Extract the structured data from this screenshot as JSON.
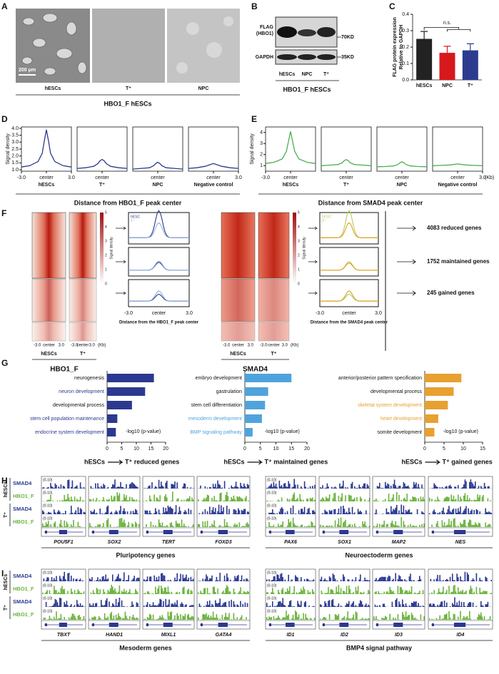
{
  "panels": {
    "letters": [
      "A",
      "B",
      "C",
      "D",
      "E",
      "F",
      "G",
      "H",
      "I"
    ],
    "a": {
      "scale_bar": "200 μm",
      "labels": [
        "hESCs",
        "T⁺",
        "NPC"
      ],
      "caption": "HBO1_F hESCs"
    },
    "b": {
      "rows": [
        "FLAG",
        "(HBO1)",
        "GAPDH"
      ],
      "sizes": [
        "70KD",
        "35KD"
      ],
      "lanes": [
        "hESCs",
        "NPC",
        "T⁺"
      ],
      "caption": "HBO1_F hESCs"
    },
    "d": {
      "caption": "Distance from HBO1_F peak center"
    },
    "e": {
      "caption": "Distance from SMAD4 peak center"
    },
    "f": {
      "sides": [
        {
          "name": "HBO1_F",
          "columns": [
            "hESCs",
            "T⁺"
          ],
          "axis": [
            "-3.0",
            "center",
            "3.0"
          ],
          "kb": "(Kb)",
          "colorbar": [
            "0",
            "1",
            "2",
            "3",
            "4",
            "5"
          ],
          "colorbar_label": "Signal density",
          "legend": [
            "hESC",
            "T⁺"
          ],
          "profile_axis": [
            "-3.0",
            "center",
            "3.0"
          ],
          "caption": "Distance from the HBO1_F peak center"
        },
        {
          "name": "SMAD4",
          "columns": [
            "hESCs",
            "T⁺"
          ],
          "axis": [
            "-3.0",
            "center",
            "3.0"
          ],
          "kb": "(Kb)",
          "colorbar": [
            "0",
            "1",
            "2",
            "3",
            "4",
            "5"
          ],
          "colorbar_label": "Signal density",
          "legend": [
            "hESC",
            "T⁺"
          ],
          "profile_axis": [
            "-3.0",
            "center",
            "3.0"
          ],
          "caption": "Distance from the SMAD4 peak center"
        }
      ],
      "groups": [
        "4083 reduced genes",
        "1752 maintained genes",
        "245 gained genes"
      ]
    },
    "h": {
      "conditions": [
        "hESCs",
        "T⁺"
      ],
      "rows": [
        "SMAD4",
        "HBO1_F",
        "SMAD4",
        "HBO1_F"
      ],
      "range": "(0-10)",
      "genes": [
        "POU5F1",
        "SOX2",
        "TERT",
        "FOXD3",
        "PAX6",
        "SOX1",
        "MAP2",
        "NES"
      ],
      "groups": [
        "Pluripotency genes",
        "Neuroectoderm genes"
      ]
    },
    "i": {
      "conditions": [
        "hESCs",
        "T⁺"
      ],
      "rows": [
        "SMAD4",
        "HBO1_F",
        "SMAD4",
        "HBO1_F"
      ],
      "range": "(0-10)",
      "genes": [
        "TBXT",
        "HAND1",
        "MIXL1",
        "GATA4",
        "ID1",
        "ID2",
        "ID3",
        "ID4"
      ],
      "groups": [
        "Mesoderm genes",
        "BMP4 signal pathway"
      ]
    }
  },
  "chart_data": [
    {
      "type": "bar",
      "ylabel": [
        "FLAG protein expression",
        "Relative to GAPDH"
      ],
      "categories": [
        "hESCs",
        "NPC",
        "T⁺"
      ],
      "values": [
        0.25,
        0.165,
        0.18
      ],
      "errors": [
        0.045,
        0.04,
        0.04
      ],
      "colors": [
        "#222222",
        "#d7191c",
        "#2c3b8f"
      ],
      "ylim": [
        0,
        0.4
      ],
      "yticks": [
        {
          "value": 0,
          "label": "0.0"
        },
        {
          "value": 0.1,
          "label": "0.1"
        },
        {
          "value": 0.2,
          "label": "0.2"
        },
        {
          "value": 0.3,
          "label": "0.3"
        },
        {
          "value": 0.4,
          "label": "0.4"
        }
      ],
      "annotation": "n.s."
    },
    {
      "type": "line",
      "xlabel": "hESCs",
      "ylabel": "Signal density",
      "x": [
        -3,
        -2,
        -1,
        -0.5,
        -0.25,
        0,
        0.25,
        0.5,
        1,
        2,
        3
      ],
      "series": [
        {
          "color": "#2b3990",
          "values": [
            1.2,
            1.3,
            1.6,
            2.2,
            3.1,
            3.9,
            3.1,
            2.2,
            1.6,
            1.3,
            1.2
          ]
        }
      ],
      "xlim": [
        -3,
        3
      ],
      "ylim": [
        0.9,
        4.1
      ],
      "yticks": [
        {
          "value": 1,
          "label": "1.0"
        },
        {
          "value": 1.5,
          "label": "1.5"
        },
        {
          "value": 2,
          "label": "2.0"
        },
        {
          "value": 2.5,
          "label": "2.5"
        },
        {
          "value": 3,
          "label": "3.0"
        },
        {
          "value": 3.5,
          "label": "3.5"
        },
        {
          "value": 4,
          "label": "4.0"
        }
      ],
      "xticks": [
        {
          "value": -3,
          "label": "-3.0"
        },
        {
          "value": 0,
          "label": "center"
        },
        {
          "value": 3,
          "label": "3.0"
        }
      ]
    },
    {
      "type": "line",
      "xlabel": "T⁺",
      "x": [
        -3,
        -2,
        -1,
        -0.5,
        -0.25,
        0,
        0.25,
        0.5,
        1,
        2,
        3
      ],
      "series": [
        {
          "color": "#2b3990",
          "values": [
            1.1,
            1.15,
            1.25,
            1.45,
            1.65,
            1.75,
            1.65,
            1.45,
            1.25,
            1.15,
            1.1
          ]
        }
      ],
      "xlim": [
        -3,
        3
      ],
      "ylim": [
        0.9,
        4.1
      ],
      "xticks": [
        {
          "value": 0,
          "label": "center"
        }
      ]
    },
    {
      "type": "line",
      "xlabel": "NPC",
      "x": [
        -3,
        -2,
        -1,
        -0.5,
        -0.25,
        0,
        0.25,
        0.5,
        1,
        2,
        3
      ],
      "series": [
        {
          "color": "#2b3990",
          "values": [
            1.05,
            1.1,
            1.15,
            1.3,
            1.45,
            1.55,
            1.45,
            1.3,
            1.15,
            1.1,
            1.05
          ]
        }
      ],
      "xlim": [
        -3,
        3
      ],
      "ylim": [
        0.9,
        4.1
      ],
      "xticks": [
        {
          "value": 0,
          "label": "center"
        }
      ]
    },
    {
      "type": "line",
      "xlabel": "Negative control",
      "x": [
        -3,
        -2,
        -1,
        -0.5,
        -0.25,
        0,
        0.25,
        0.5,
        1,
        2,
        3
      ],
      "series": [
        {
          "color": "#2b3990",
          "values": [
            1.1,
            1.15,
            1.25,
            1.35,
            1.4,
            1.45,
            1.4,
            1.35,
            1.25,
            1.15,
            1.1
          ]
        }
      ],
      "xlim": [
        -3,
        3
      ],
      "ylim": [
        0.9,
        4.1
      ],
      "xticks": [
        {
          "value": 0,
          "label": "center"
        },
        {
          "value": 3,
          "label": "3.0"
        }
      ]
    },
    {
      "type": "line",
      "xlabel": "hESCs",
      "ylabel": "Signal density",
      "x": [
        -3,
        -2,
        -1,
        -0.5,
        -0.25,
        0,
        0.25,
        0.5,
        1,
        2,
        3
      ],
      "series": [
        {
          "color": "#4caf50",
          "values": [
            1.2,
            1.3,
            1.6,
            2.3,
            3.2,
            4.1,
            3.2,
            2.3,
            1.6,
            1.3,
            1.2
          ]
        }
      ],
      "xlim": [
        -3,
        3
      ],
      "ylim": [
        0.5,
        4.5
      ],
      "yticks": [
        1,
        2,
        3,
        4
      ],
      "xticks": [
        {
          "value": -3,
          "label": "-3.0"
        },
        {
          "value": 0,
          "label": "center"
        }
      ]
    },
    {
      "type": "line",
      "xlabel": "T⁺",
      "x": [
        -3,
        -2,
        -1,
        -0.5,
        -0.25,
        0,
        0.25,
        0.5,
        1,
        2,
        3
      ],
      "series": [
        {
          "color": "#4caf50",
          "values": [
            1.0,
            1.05,
            1.1,
            1.25,
            1.45,
            1.55,
            1.45,
            1.25,
            1.1,
            1.05,
            1.0
          ]
        }
      ],
      "xlim": [
        -3,
        3
      ],
      "ylim": [
        0.5,
        4.5
      ],
      "xticks": [
        {
          "value": 0,
          "label": "center"
        }
      ]
    },
    {
      "type": "line",
      "xlabel": "NPC",
      "x": [
        -3,
        -2,
        -1,
        -0.5,
        -0.25,
        0,
        0.25,
        0.5,
        1,
        2,
        3
      ],
      "series": [
        {
          "color": "#4caf50",
          "values": [
            0.9,
            0.92,
            0.97,
            1.1,
            1.25,
            1.35,
            1.25,
            1.1,
            0.97,
            0.92,
            0.9
          ]
        }
      ],
      "xlim": [
        -3,
        3
      ],
      "ylim": [
        0.5,
        4.5
      ],
      "xticks": [
        {
          "value": 0,
          "label": "center"
        }
      ]
    },
    {
      "type": "line",
      "xlabel": "Negative control",
      "xunit": "(Kb)",
      "x": [
        -3,
        -2,
        -1,
        -0.5,
        -0.25,
        0,
        0.25,
        0.5,
        1,
        2,
        3
      ],
      "series": [
        {
          "color": "#4caf50",
          "values": [
            1.0,
            1.02,
            1.06,
            1.1,
            1.13,
            1.15,
            1.13,
            1.1,
            1.06,
            1.02,
            1.0
          ]
        }
      ],
      "xlim": [
        -3,
        3
      ],
      "ylim": [
        0.5,
        4.5
      ],
      "xticks": [
        {
          "value": 0,
          "label": "center"
        },
        {
          "value": 3,
          "label": "3.0"
        }
      ]
    },
    {
      "type": "hbar",
      "categories": [
        "neurogenesis",
        "neuron development",
        "developmental process",
        "stem cell population maintenance",
        "endocrine system development"
      ],
      "label_colors": [
        "#111111",
        "#2b3990",
        "#111111",
        "#2b3990",
        "#2b3990"
      ],
      "values": [
        16,
        13,
        8.5,
        3.5,
        3
      ],
      "color": "#2b3990",
      "xlim": [
        0,
        20
      ],
      "xticks": [
        0,
        5,
        10,
        15,
        20
      ],
      "xlabel": "-log10 (p-value)",
      "title": [
        "hESCs",
        "T⁺ reduced genes"
      ]
    },
    {
      "type": "hbar",
      "categories": [
        "embryo development",
        "gastrulation",
        "stem cell differentiation",
        "mesoderm development",
        "BMP signaling pathway"
      ],
      "label_colors": [
        "#111111",
        "#111111",
        "#111111",
        "#4fa3dc",
        "#4fa3dc"
      ],
      "values": [
        15,
        7.5,
        6.5,
        5.5,
        2.5
      ],
      "color": "#4fa3dc",
      "xlim": [
        0,
        20
      ],
      "xticks": [
        0,
        5,
        10,
        15,
        20
      ],
      "xlabel": "-log10 (p-value)",
      "title": [
        "hESCs",
        "T⁺ maintained genes"
      ]
    },
    {
      "type": "hbar",
      "categories": [
        "anterior/posterior pattern specification",
        "developmental process",
        "skeletal system development",
        "heart development",
        "somite development"
      ],
      "label_colors": [
        "#111111",
        "#111111",
        "#e8a030",
        "#e8a030",
        "#111111"
      ],
      "values": [
        9.5,
        7.5,
        6,
        3.5,
        2.5
      ],
      "color": "#e8a030",
      "xlim": [
        0,
        15
      ],
      "xticks": [
        0,
        5,
        10,
        15
      ],
      "xlabel": "-log10 (p-value)",
      "title": [
        "hESCs",
        "T⁺ gained genes"
      ]
    }
  ]
}
